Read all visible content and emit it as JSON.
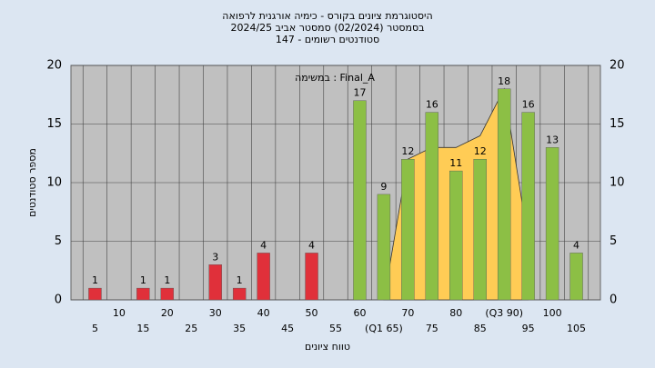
{
  "chart_data": {
    "type": "bar",
    "title": "היסטוגרמת ציונים בקורס - כימיה אורגנית לרפואה",
    "subtitle": "בסמסטר (02/2024) סמסטר אביב 2024/25",
    "subtitle2": "סטודנטים רשומים - 147",
    "annotation": "במשימה : Final_A",
    "y_label": "מספר סטודנטים",
    "x_label": "טווח ציונים",
    "categories": [
      "5",
      "10",
      "15",
      "20",
      "25",
      "30",
      "35",
      "40",
      "45",
      "50",
      "55",
      "60",
      "(Q1 65)",
      "70",
      "75",
      "80",
      "85",
      "(Q3 90)",
      "95",
      "100",
      "105"
    ],
    "values": [
      1,
      0,
      1,
      1,
      0,
      3,
      1,
      4,
      0,
      4,
      0,
      17,
      9,
      12,
      16,
      11,
      12,
      18,
      16,
      13,
      4
    ],
    "colors": [
      "#e0303a",
      "#e0303a",
      "#e0303a",
      "#e0303a",
      "#e0303a",
      "#e0303a",
      "#e0303a",
      "#e0303a",
      "#e0303a",
      "#e0303a",
      "#e0303a",
      "#8cbf45",
      "#8cbf45",
      "#8cbf45",
      "#8cbf45",
      "#8cbf45",
      "#8cbf45",
      "#8cbf45",
      "#8cbf45",
      "#8cbf45",
      "#8cbf45"
    ],
    "area": {
      "color": "#ffcc55",
      "values": [
        null,
        null,
        null,
        null,
        null,
        null,
        null,
        null,
        null,
        null,
        null,
        null,
        0,
        12,
        13,
        13,
        14,
        18,
        5,
        null,
        null
      ]
    },
    "ylim": [
      0,
      20
    ],
    "yticks": [
      0,
      5,
      10,
      15,
      20
    ],
    "grid": true
  }
}
